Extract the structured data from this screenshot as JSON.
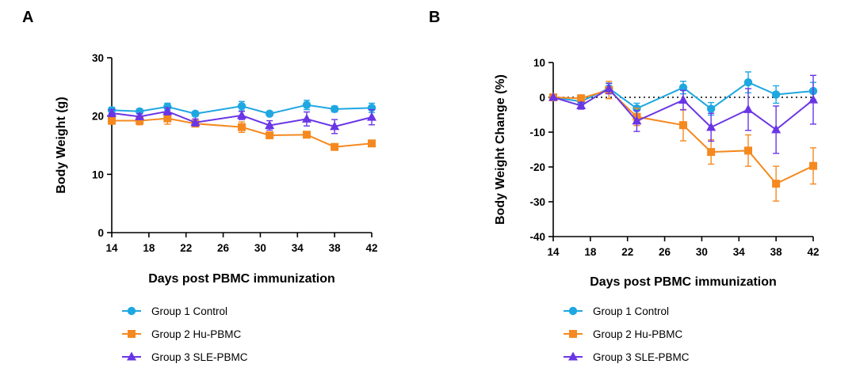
{
  "chart_data": [
    {
      "panel": "A",
      "type": "line",
      "ylabel": "Body Weight (g)",
      "xlabel": "Days post PBMC immunization",
      "xticks": [
        14,
        18,
        22,
        26,
        30,
        34,
        38,
        42
      ],
      "yticks": [
        0,
        10,
        20,
        30
      ],
      "xlim": [
        14,
        42
      ],
      "ylim": [
        0,
        30
      ],
      "reference_line": null,
      "series": [
        {
          "name": "Group 1 Control",
          "color": "#1ea7e1",
          "marker": "circle",
          "x": [
            14,
            17,
            20,
            23,
            28,
            31,
            35,
            38,
            42
          ],
          "y": [
            21.0,
            20.8,
            21.6,
            20.4,
            21.7,
            20.4,
            21.9,
            21.2,
            21.4
          ],
          "err": [
            0.5,
            0.4,
            0.6,
            0.4,
            0.8,
            0.4,
            0.8,
            0.5,
            0.8
          ]
        },
        {
          "name": "Group 2 Hu-PBMC",
          "color": "#f5891f",
          "marker": "square",
          "x": [
            14,
            17,
            20,
            23,
            28,
            31,
            35,
            38,
            42
          ],
          "y": [
            19.2,
            19.2,
            19.6,
            18.7,
            18.1,
            16.7,
            16.8,
            14.7,
            15.3
          ],
          "err": [
            0.6,
            0.7,
            1.0,
            0.5,
            0.9,
            0.5,
            0.5,
            0.4,
            0.5
          ]
        },
        {
          "name": "Group 3 SLE-PBMC",
          "color": "#6a35e6",
          "marker": "triangle",
          "x": [
            14,
            17,
            20,
            23,
            28,
            31,
            35,
            38,
            42
          ],
          "y": [
            20.5,
            19.9,
            20.8,
            18.9,
            20.1,
            18.4,
            19.5,
            18.2,
            19.8
          ],
          "err": [
            0.6,
            0.5,
            0.6,
            0.6,
            0.7,
            0.8,
            1.2,
            1.2,
            1.3
          ]
        }
      ]
    },
    {
      "panel": "B",
      "type": "line",
      "ylabel": "Body Weight Change (%)",
      "xlabel": "Days post PBMC immunization",
      "xticks": [
        14,
        18,
        22,
        26,
        30,
        34,
        38,
        42
      ],
      "yticks": [
        -40,
        -30,
        -20,
        -10,
        0,
        10
      ],
      "xlim": [
        14,
        42
      ],
      "ylim": [
        -40,
        10
      ],
      "reference_line": 0,
      "series": [
        {
          "name": "Group 1 Control",
          "color": "#1ea7e1",
          "marker": "circle",
          "x": [
            14,
            17,
            20,
            23,
            28,
            31,
            35,
            38,
            42
          ],
          "y": [
            0,
            -1.2,
            2.6,
            -3.2,
            2.8,
            -3.3,
            4.3,
            0.8,
            1.8
          ],
          "err": [
            0,
            1.0,
            1.5,
            1.5,
            1.8,
            1.8,
            3.0,
            2.5,
            2.5
          ]
        },
        {
          "name": "Group 2 Hu-PBMC",
          "color": "#f5891f",
          "marker": "square",
          "x": [
            14,
            17,
            20,
            23,
            28,
            31,
            35,
            38,
            42
          ],
          "y": [
            0,
            -0.3,
            2.1,
            -5.6,
            -8.0,
            -15.7,
            -15.3,
            -24.8,
            -19.7
          ],
          "err": [
            0,
            1.0,
            2.5,
            2.5,
            4.5,
            3.5,
            4.5,
            5.0,
            5.2
          ]
        },
        {
          "name": "Group 3 SLE-PBMC",
          "color": "#6a35e6",
          "marker": "triangle",
          "x": [
            14,
            17,
            20,
            23,
            28,
            31,
            35,
            38,
            42
          ],
          "y": [
            0,
            -2.4,
            2.5,
            -6.8,
            -0.8,
            -8.6,
            -3.5,
            -9.3,
            -0.7
          ],
          "err": [
            0,
            1.0,
            1.5,
            3.0,
            2.8,
            4.0,
            6.0,
            6.8,
            7.0
          ]
        }
      ]
    }
  ]
}
